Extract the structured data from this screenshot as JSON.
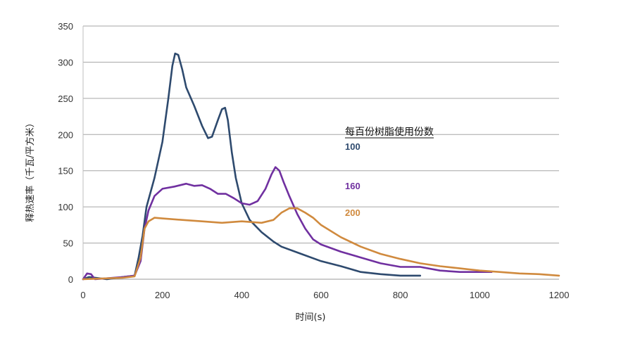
{
  "chart_data": {
    "type": "line",
    "xlabel": "时间(s)",
    "ylabel": "释热速率（千瓦/平方米）",
    "xlim": [
      0,
      1200
    ],
    "ylim": [
      0,
      350
    ],
    "xticks": [
      0,
      200,
      400,
      600,
      800,
      1000,
      1200
    ],
    "yticks": [
      0,
      50,
      100,
      150,
      200,
      250,
      300,
      350
    ],
    "grid": "horizontal",
    "legend_title": "每百份树脂使用份数",
    "legend_position": "right",
    "series": [
      {
        "name": "100",
        "color": "#2e4a6e",
        "x": [
          0,
          15,
          30,
          60,
          100,
          130,
          140,
          150,
          160,
          180,
          200,
          215,
          225,
          232,
          240,
          250,
          260,
          280,
          300,
          315,
          325,
          340,
          350,
          358,
          365,
          375,
          385,
          400,
          420,
          450,
          480,
          500,
          550,
          600,
          650,
          700,
          750,
          800,
          850
        ],
        "y": [
          0,
          3,
          2,
          0,
          3,
          5,
          30,
          60,
          100,
          140,
          190,
          250,
          295,
          312,
          310,
          290,
          265,
          240,
          212,
          195,
          197,
          220,
          235,
          237,
          220,
          175,
          140,
          105,
          82,
          65,
          52,
          45,
          35,
          25,
          18,
          10,
          7,
          5,
          5
        ]
      },
      {
        "name": "160",
        "color": "#7030a0",
        "x": [
          0,
          10,
          20,
          30,
          100,
          130,
          145,
          155,
          165,
          180,
          200,
          230,
          260,
          280,
          300,
          320,
          340,
          360,
          380,
          400,
          420,
          440,
          460,
          475,
          485,
          495,
          505,
          520,
          540,
          560,
          580,
          600,
          650,
          700,
          750,
          800,
          850,
          900,
          950,
          1000,
          1030
        ],
        "y": [
          0,
          8,
          7,
          0,
          3,
          5,
          25,
          70,
          95,
          115,
          125,
          128,
          132,
          129,
          130,
          125,
          118,
          118,
          112,
          105,
          103,
          108,
          125,
          145,
          155,
          150,
          135,
          115,
          90,
          70,
          55,
          48,
          38,
          30,
          22,
          17,
          17,
          12,
          10,
          10,
          10
        ]
      },
      {
        "name": "200",
        "color": "#d08a3e",
        "x": [
          0,
          100,
          130,
          145,
          155,
          165,
          180,
          200,
          250,
          300,
          350,
          400,
          450,
          480,
          500,
          520,
          540,
          560,
          580,
          600,
          650,
          700,
          750,
          800,
          850,
          900,
          950,
          1000,
          1050,
          1100,
          1150,
          1200
        ],
        "y": [
          0,
          2,
          4,
          30,
          70,
          80,
          85,
          84,
          82,
          80,
          78,
          80,
          78,
          82,
          92,
          98,
          98,
          92,
          85,
          75,
          58,
          45,
          35,
          28,
          22,
          18,
          15,
          12,
          10,
          8,
          7,
          5
        ]
      }
    ]
  }
}
